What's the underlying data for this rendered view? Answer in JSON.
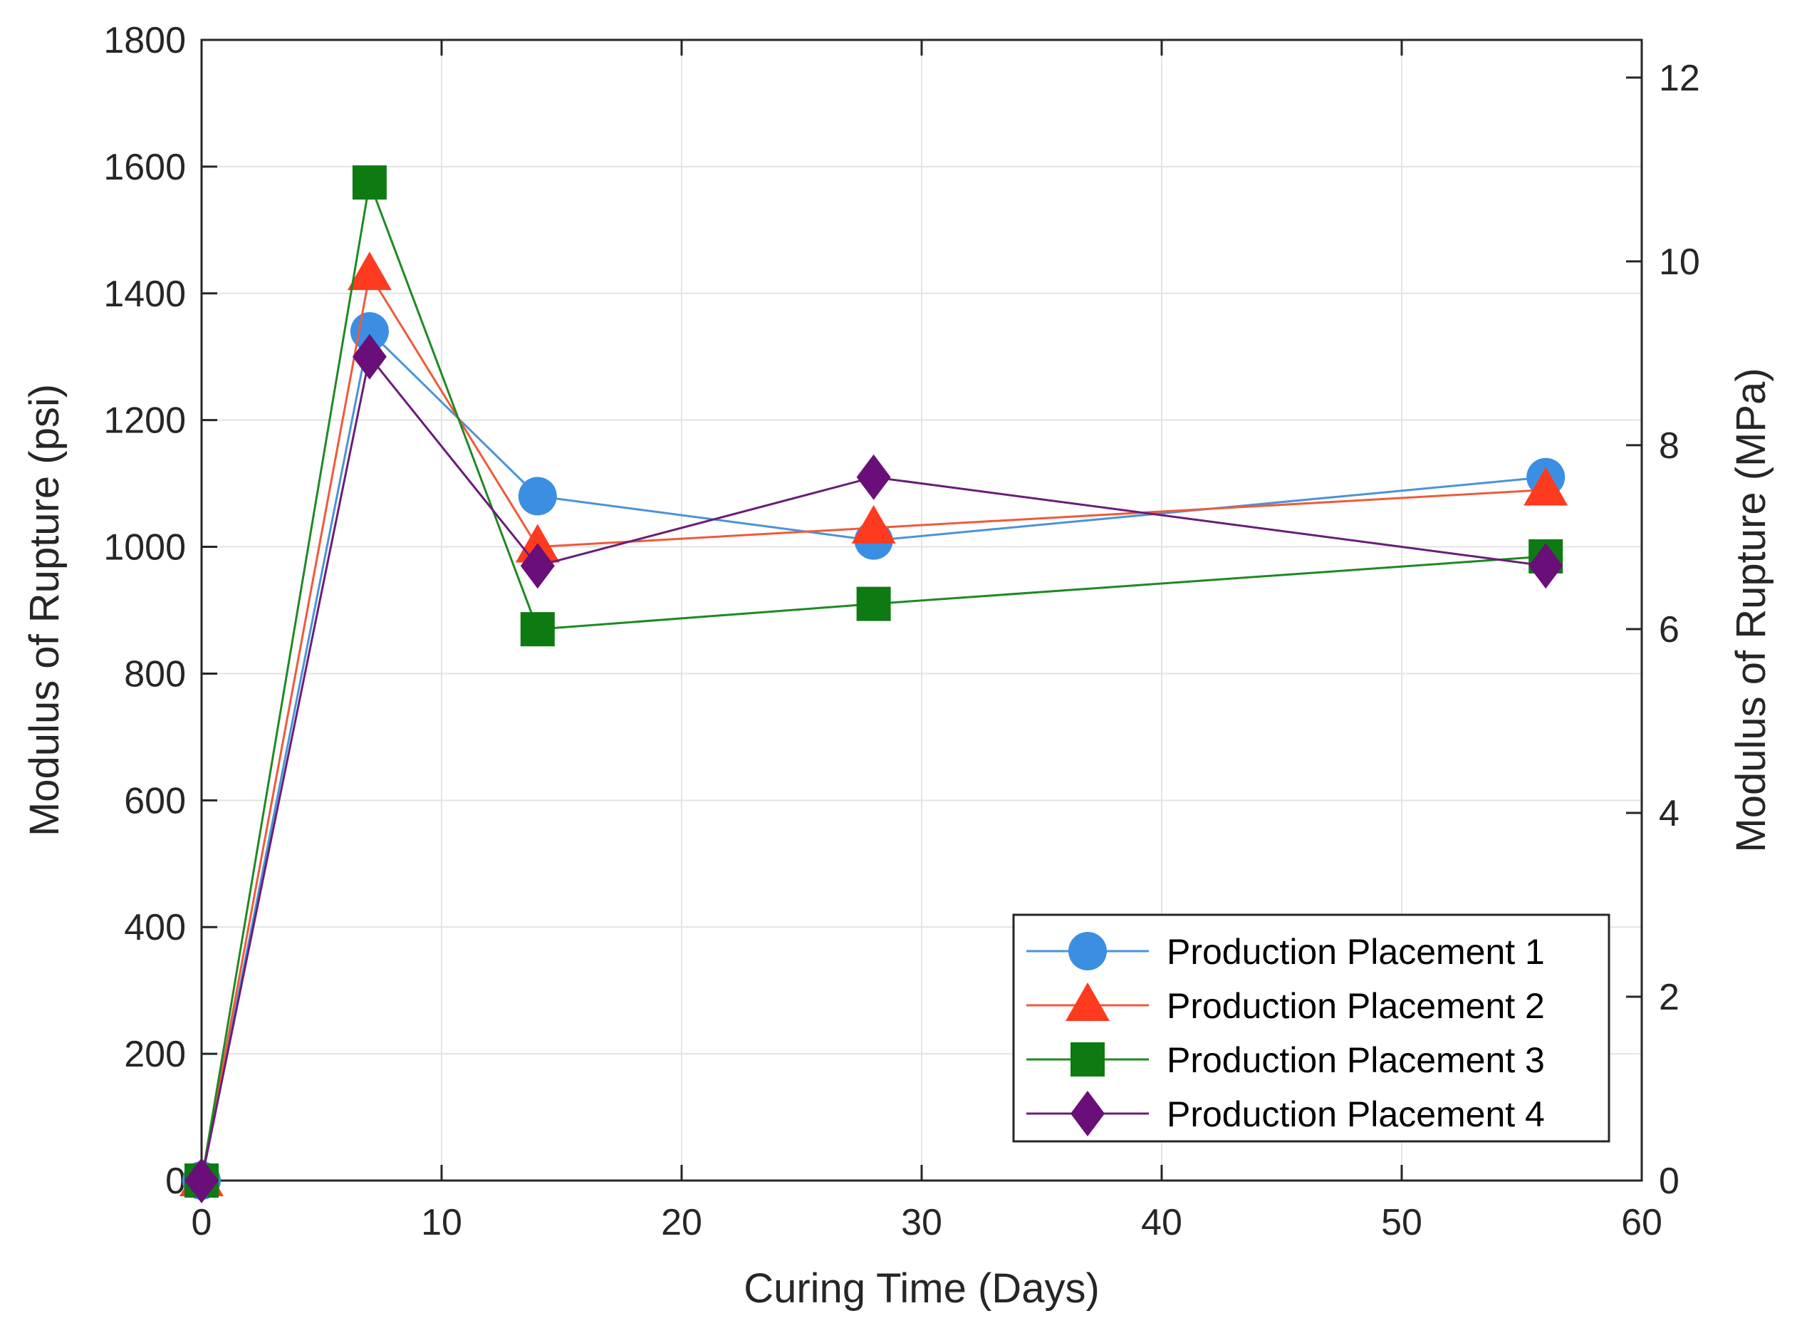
{
  "chart_data": {
    "type": "line",
    "xlabel": "Curing Time (Days)",
    "ylabel": "Modulus of Rupture (psi)",
    "ylabel_right": "Modulus of Rupture (MPa)",
    "xlim": [
      0,
      60
    ],
    "ylim": [
      0,
      1800
    ],
    "ylim_right": [
      0,
      12.41
    ],
    "xticks": [
      0,
      10,
      20,
      30,
      40,
      50,
      60
    ],
    "yticks": [
      0,
      200,
      400,
      600,
      800,
      1000,
      1200,
      1400,
      1600,
      1800
    ],
    "yticks_right": [
      0,
      2,
      4,
      6,
      8,
      10,
      12
    ],
    "grid": true,
    "legend_position": "bottom-right",
    "x": [
      0,
      7,
      14,
      28,
      56
    ],
    "series": [
      {
        "name": "Production Placement 1",
        "values": [
          0,
          1340,
          1080,
          1010,
          1110
        ],
        "color": "#3b8fe3",
        "line_color": "#4a93d9",
        "marker": "circle"
      },
      {
        "name": "Production Placement 2",
        "values": [
          0,
          1430,
          1000,
          1030,
          1090
        ],
        "color": "#ff3b1f",
        "line_color": "#ef5a3a",
        "marker": "triangle"
      },
      {
        "name": "Production Placement 3",
        "values": [
          0,
          1575,
          870,
          910,
          985
        ],
        "color": "#0e7a12",
        "line_color": "#1e8a22",
        "marker": "square"
      },
      {
        "name": "Production Placement 4",
        "values": [
          0,
          1300,
          970,
          1110,
          970
        ],
        "color": "#6a0f7a",
        "line_color": "#6a1d78",
        "marker": "diamond"
      }
    ]
  }
}
